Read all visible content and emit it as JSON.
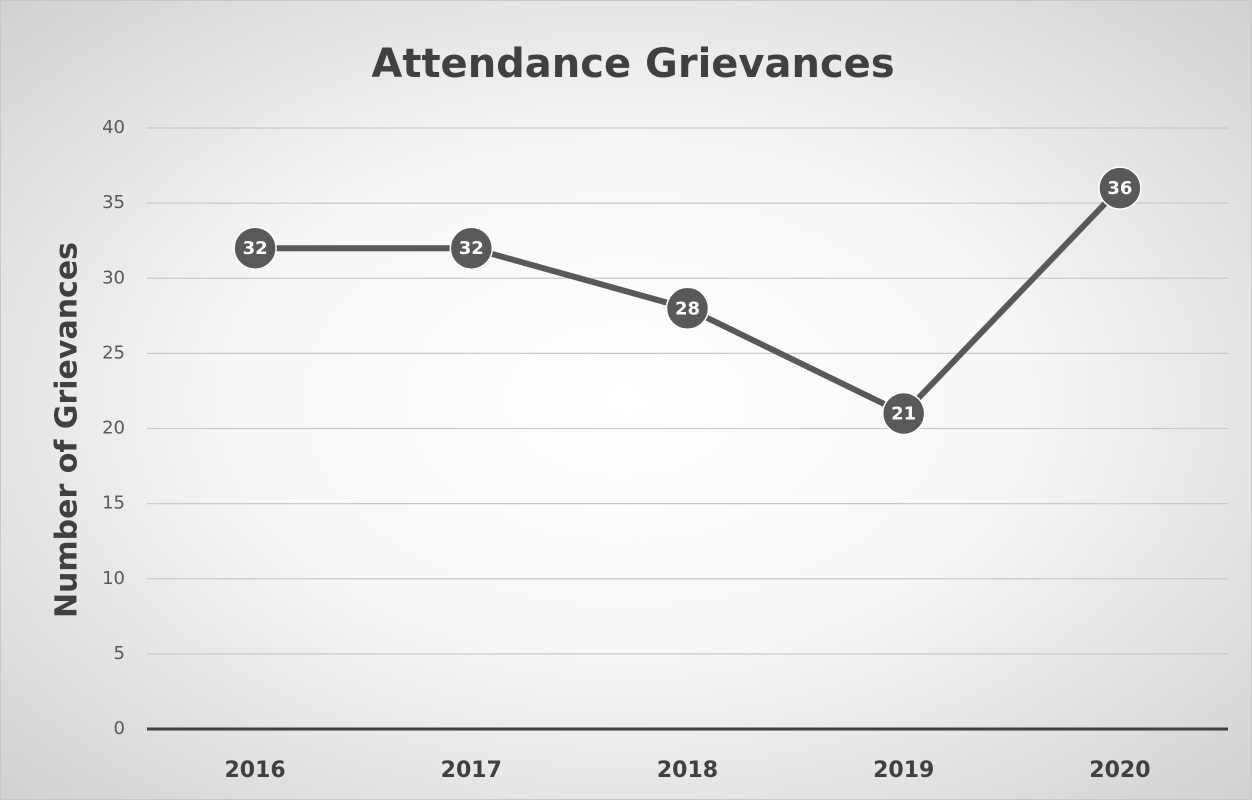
{
  "chart_data": {
    "type": "line",
    "title": "Attendance Grievances",
    "y_axis_label": "Number of Grievances",
    "categories": [
      "2016",
      "2017",
      "2018",
      "2019",
      "2020"
    ],
    "values": [
      32,
      32,
      28,
      21,
      36
    ],
    "color": "#595959",
    "ylim": [
      0,
      40
    ],
    "yticks": [
      0,
      5,
      10,
      15,
      20,
      25,
      30,
      35,
      40
    ],
    "grid": true
  }
}
